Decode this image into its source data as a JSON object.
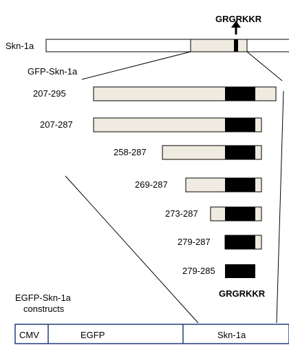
{
  "colors": {
    "fill_light": "#efebe0",
    "fill_dark": "#000000",
    "outline": "#000000",
    "construct_border": "#1f3d7a"
  },
  "full_protein": {
    "label": "Skn-1a",
    "motif": "GRGRKKR"
  },
  "fusion_label": "GFP-Skn-1a",
  "constructs": [
    {
      "label": "207-295",
      "start": 207,
      "end": 295
    },
    {
      "label": "207-287",
      "start": 207,
      "end": 287
    },
    {
      "label": "258-287",
      "start": 258,
      "end": 287
    },
    {
      "label": "269-287",
      "start": 269,
      "end": 287
    },
    {
      "label": "273-287",
      "start": 273,
      "end": 287
    },
    {
      "label": "279-287",
      "start": 279,
      "end": 287
    },
    {
      "label": "279-285",
      "start": 279,
      "end": 285
    }
  ],
  "bottom_motif": "GRGRKKR",
  "egfp_title": {
    "line1": "EGFP-Skn-1a",
    "line2": "constructs"
  },
  "construct_bar": {
    "segments": [
      "CMV",
      "EGFP",
      "Skn-1a"
    ]
  }
}
